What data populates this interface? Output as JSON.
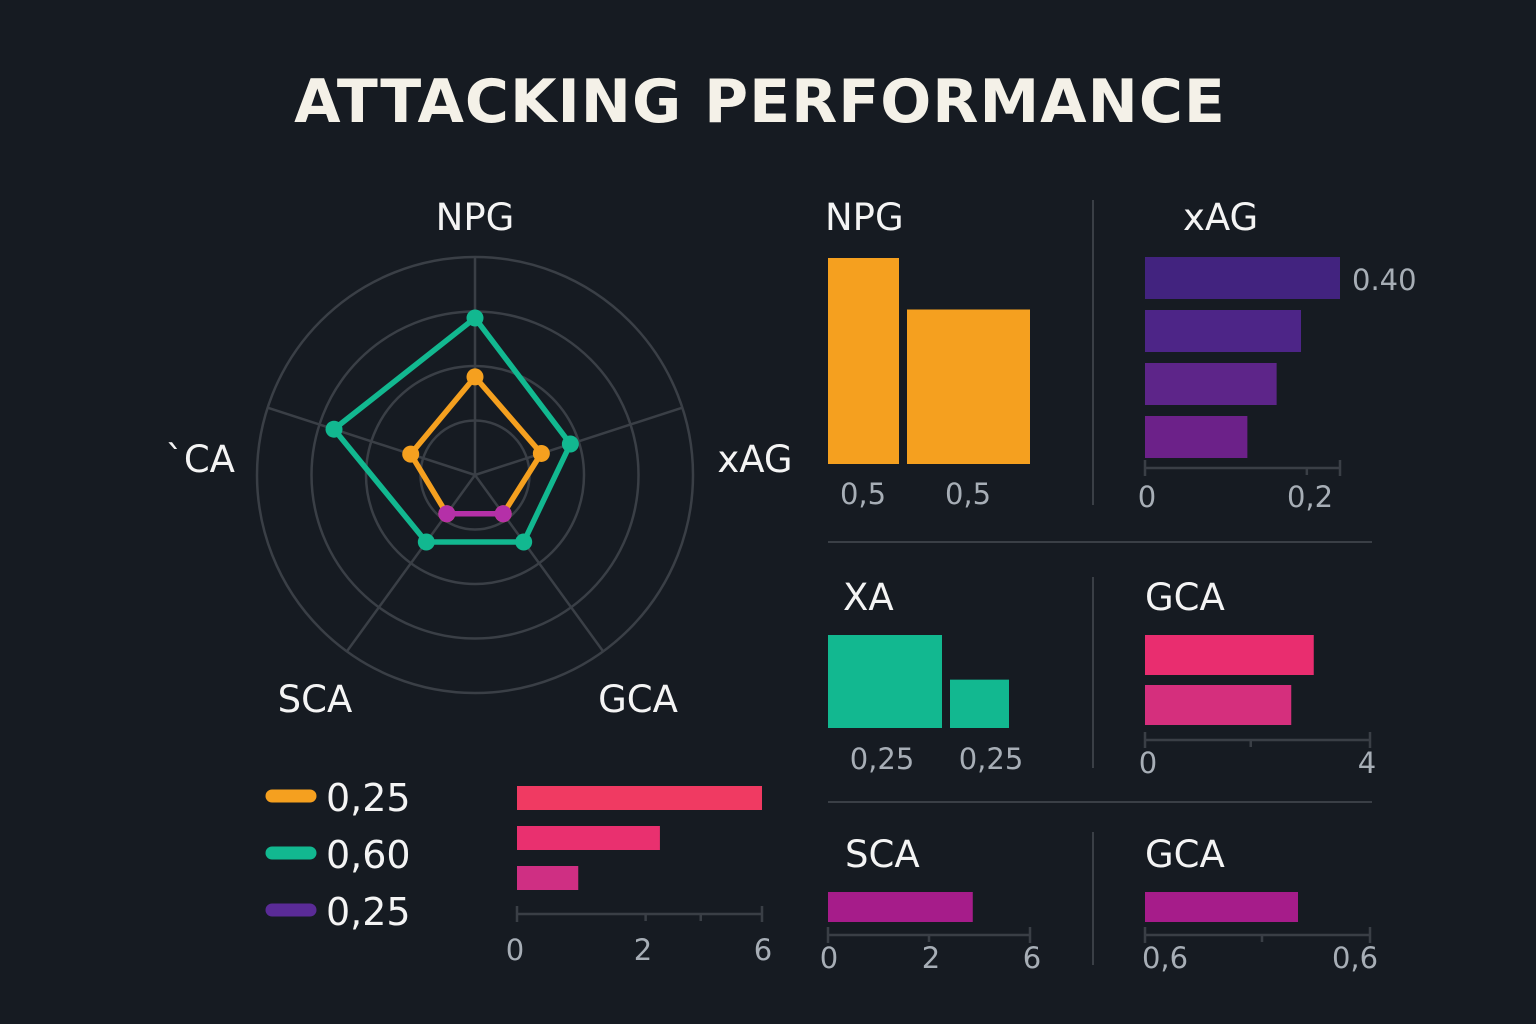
{
  "title": "ATTACKING PERFORMANCE",
  "colors": {
    "background": "#161b22",
    "grid": "#3a3f46",
    "orange": "#f5a01f",
    "teal": "#12b890",
    "magenta": "#b530a8",
    "purple": "#5a2b97",
    "pink": "#e92f6e",
    "red": "#f03a62",
    "tick": "#a7aeb6"
  },
  "chart_data": [
    {
      "type": "radar",
      "axes": [
        "NPG",
        "xAG",
        "GCA",
        "SCA",
        "`CA"
      ],
      "rmax": 1,
      "rings": 4,
      "series": [
        {
          "values": [
            0.72,
            0.46,
            0.38,
            0.38,
            0.68
          ],
          "color": "#12b890"
        },
        {
          "values": [
            0.45,
            0.32,
            0.22,
            0.22,
            0.31
          ],
          "color": "#f5a01f"
        },
        {
          "values": [
            null,
            null,
            0.22,
            0.22,
            null
          ],
          "color": "#b530a8"
        }
      ],
      "legend": [
        {
          "label": "0,25",
          "color": "#f5a01f"
        },
        {
          "label": "0,60",
          "color": "#12b890"
        },
        {
          "label": "0,25",
          "color": "#5a2b97"
        }
      ]
    },
    {
      "type": "bar",
      "orientation": "horizontal",
      "values": [
        6,
        3.5,
        1.5
      ],
      "colors": [
        "#f03a62",
        "#e9306f",
        "#cf2f83"
      ],
      "xlim": [
        0,
        6
      ],
      "ticks": [
        "0",
        "2",
        "6"
      ]
    },
    {
      "type": "bar",
      "orientation": "vertical",
      "title": "NPG",
      "categories": [
        "0,5",
        "0,5"
      ],
      "values": [
        1.0,
        0.75
      ],
      "color": "#f5a01f"
    },
    {
      "type": "bar",
      "orientation": "horizontal",
      "title": "xAG",
      "values": [
        0.4,
        0.32,
        0.27,
        0.21
      ],
      "colors": [
        "#42237f",
        "#4d2587",
        "#5d2589",
        "#6c2189"
      ],
      "value_label": "0.40",
      "xlim": [
        0,
        0.4
      ],
      "ticks": [
        "0",
        "0,2"
      ]
    },
    {
      "type": "bar",
      "orientation": "vertical",
      "title": "XA",
      "categories": [
        "0,25",
        "0,25"
      ],
      "values": [
        1.0,
        0.52
      ],
      "color": "#12b890"
    },
    {
      "type": "bar",
      "orientation": "horizontal",
      "title": "GCA",
      "values": [
        3.0,
        2.6
      ],
      "colors": [
        "#e92d6f",
        "#d52f7d"
      ],
      "xlim": [
        0,
        4
      ],
      "ticks": [
        "0",
        "4"
      ]
    },
    {
      "type": "bar",
      "orientation": "horizontal",
      "title": "SCA",
      "values": [
        4.3
      ],
      "colors": [
        "#a61c8a"
      ],
      "xlim": [
        0,
        6
      ],
      "ticks": [
        "0",
        "2",
        "6"
      ]
    },
    {
      "type": "bar",
      "orientation": "horizontal",
      "title": "GCA",
      "values": [
        0.68
      ],
      "colors": [
        "#a61c8a"
      ],
      "xlim": [
        0,
        1
      ],
      "ticks": [
        "0,6",
        "0,6"
      ]
    }
  ]
}
